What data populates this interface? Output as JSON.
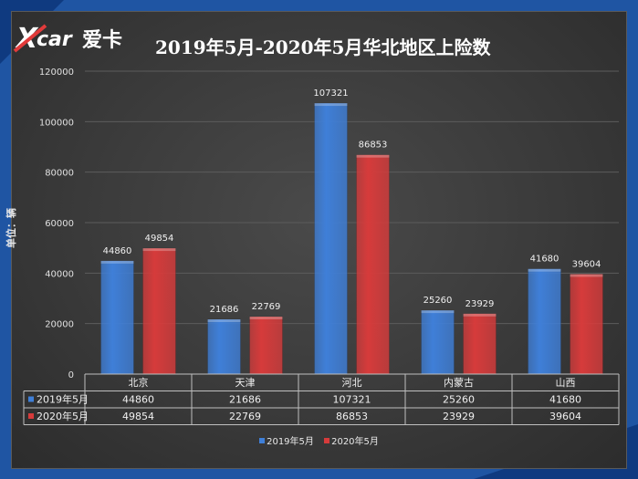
{
  "title": "2019年5月-2020年5月华北地区上险数",
  "logo": {
    "text": "爱卡"
  },
  "ylabel": "单位：辆",
  "colors": {
    "series_2019": "#3f7fd8",
    "series_2020": "#d63b3b"
  },
  "chart_data": {
    "type": "bar",
    "categories": [
      "北京",
      "天津",
      "河北",
      "内蒙古",
      "山西"
    ],
    "series": [
      {
        "name": "2019年5月",
        "values": [
          44860,
          21686,
          107321,
          25260,
          41680
        ]
      },
      {
        "name": "2020年5月",
        "values": [
          49854,
          22769,
          86853,
          23929,
          39604
        ]
      }
    ],
    "ylim": [
      0,
      120000
    ],
    "yticks": [
      "0",
      "20000",
      "40000",
      "60000",
      "80000",
      "100000",
      "120000"
    ],
    "ylabel": "单位：辆",
    "grid": true,
    "legend": "bottom",
    "data_table": true
  }
}
